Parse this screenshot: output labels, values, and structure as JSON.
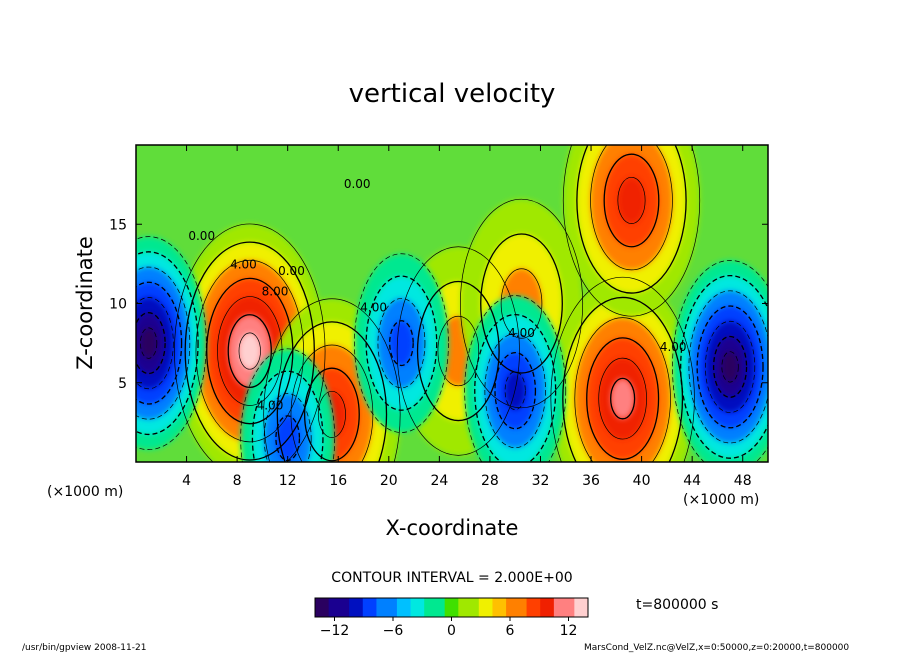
{
  "chart_data": {
    "type": "heatmap",
    "title": "vertical velocity",
    "xlabel": "X-coordinate",
    "ylabel": "Z-coordinate",
    "x_unit": "(×1000 m)",
    "y_unit": "(×1000 m)",
    "xlim": [
      0,
      50
    ],
    "ylim": [
      0,
      20
    ],
    "x_ticks": [
      4,
      8,
      12,
      16,
      20,
      24,
      28,
      32,
      36,
      40,
      44,
      48
    ],
    "y_ticks": [
      5,
      10,
      15
    ],
    "contour_interval_text": "CONTOUR INTERVAL = 2.000E+00",
    "time_label": "t=800000 s",
    "colorbar": {
      "range": [
        -14,
        14
      ],
      "ticks": [
        -12,
        -6,
        0,
        6,
        12
      ],
      "tick_labels": [
        "−12",
        "−6",
        "0",
        "6",
        "12"
      ],
      "colors": [
        "#2a0060",
        "#1a0090",
        "#0010c0",
        "#0040ff",
        "#0080ff",
        "#00c0ff",
        "#00e8e0",
        "#00e890",
        "#40e000",
        "#a0e800",
        "#f0f000",
        "#ffc000",
        "#ff8000",
        "#ff4000",
        "#f02000",
        "#ff8080",
        "#ffd0d0"
      ]
    },
    "contour_labels": [
      {
        "text": "4.00",
        "x": 8.5,
        "y": 12.2
      },
      {
        "text": "8.00",
        "x": 11.0,
        "y": 10.5
      },
      {
        "text": "4.00",
        "x": 18.8,
        "y": 9.5
      },
      {
        "text": "4.00",
        "x": 42.5,
        "y": 7.0
      },
      {
        "text": "0.00",
        "x": 17.5,
        "y": 17.3
      },
      {
        "text": "0.00",
        "x": 5.2,
        "y": 14.0
      },
      {
        "text": "0.00",
        "x": 12.3,
        "y": 11.8
      },
      {
        "text": "4.00",
        "x": 30.5,
        "y": 7.9
      },
      {
        "text": "4.00",
        "x": 10.6,
        "y": 3.3
      }
    ],
    "features": [
      {
        "sign": "positive",
        "x": 9.0,
        "z": 7.0,
        "max_value": 14,
        "label": "updraft"
      },
      {
        "sign": "positive",
        "x": 15.5,
        "z": 3.0,
        "max_value": 10,
        "label": "updraft"
      },
      {
        "sign": "positive",
        "x": 25.5,
        "z": 7.0,
        "max_value": 6,
        "label": "updraft"
      },
      {
        "sign": "positive",
        "x": 30.5,
        "z": 10.0,
        "max_value": 6,
        "label": "updraft"
      },
      {
        "sign": "positive",
        "x": 38.5,
        "z": 4.0,
        "max_value": 12,
        "label": "updraft"
      },
      {
        "sign": "positive",
        "x": 39.2,
        "z": 16.5,
        "max_value": 10,
        "label": "updraft"
      },
      {
        "sign": "negative",
        "x": 1.0,
        "z": 7.5,
        "min_value": -14,
        "label": "downdraft"
      },
      {
        "sign": "negative",
        "x": 21.0,
        "z": 7.5,
        "min_value": -8,
        "label": "downdraft"
      },
      {
        "sign": "negative",
        "x": 30.0,
        "z": 4.5,
        "min_value": -10,
        "label": "downdraft"
      },
      {
        "sign": "negative",
        "x": 12.0,
        "z": 1.5,
        "min_value": -8,
        "label": "downdraft"
      },
      {
        "sign": "negative",
        "x": 47.0,
        "z": 6.0,
        "min_value": -14,
        "label": "downdraft"
      }
    ]
  },
  "footer": {
    "left": "/usr/bin/gpview  2008-11-21",
    "right": "MarsCond_VelZ.nc@VelZ,x=0:50000,z=0:20000,t=800000"
  }
}
